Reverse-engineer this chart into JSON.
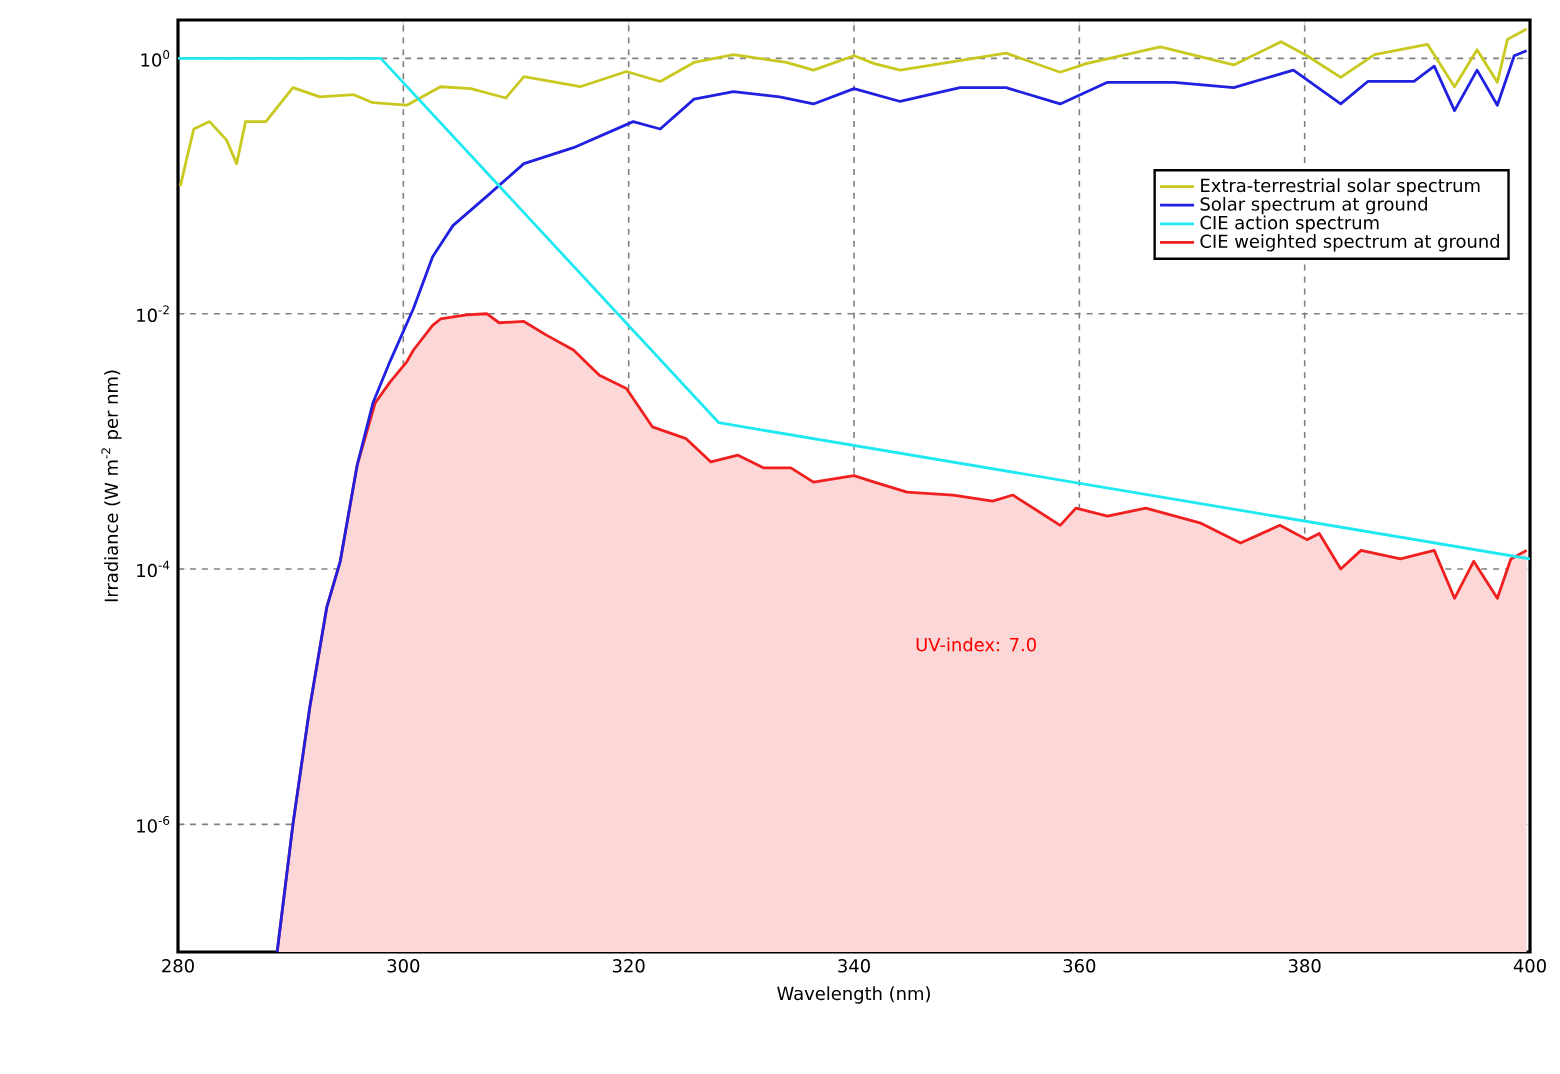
{
  "chart_data": {
    "type": "line",
    "xlabel": "Wavelength (nm)",
    "ylabel": "Irradiance (W m$^{-2}$ per nm)",
    "xlim": [
      280,
      400
    ],
    "xticks": [
      280,
      300,
      320,
      340,
      360,
      380,
      400
    ],
    "ylim": [
      1e-07,
      2
    ],
    "yticks": [
      {
        "value": 1e-06,
        "label": "10$^{-6}$"
      },
      {
        "value": 0.0001,
        "label": "10$^{-4}$"
      },
      {
        "value": 0.01,
        "label": "10$^{-2}$"
      },
      {
        "value": 1,
        "label": "10$^{0}$"
      }
    ],
    "log": "y",
    "grid": true,
    "legend": "top right",
    "line_style": "solid",
    "annotations": [
      "UV-index: 7.0"
    ],
    "series": [
      {
        "name": "Extra-terrestrial solar spectrum",
        "color": "#c8c820",
        "x": [
          280.2,
          281.4,
          282.8,
          284.3,
          285.2,
          286,
          287.8,
          290.2,
          292.6,
          295.6,
          297.3,
          300.3,
          303.3,
          306,
          309.1,
          310.7,
          315.7,
          319.8,
          322.8,
          325.8,
          329.3,
          334,
          336.4,
          340,
          341.8,
          344.1,
          347.7,
          353.5,
          358.3,
          360.6,
          367.2,
          373.7,
          377.9,
          380.2,
          383.2,
          386.2,
          390.9,
          393.3,
          395.3,
          397.1,
          398,
          399.7
        ],
        "values": [
          0.1,
          0.28,
          0.32,
          0.23,
          0.15,
          0.32,
          0.32,
          0.59,
          0.5,
          0.52,
          0.45,
          0.43,
          0.6,
          0.58,
          0.49,
          0.72,
          0.6,
          0.79,
          0.66,
          0.93,
          1.07,
          0.93,
          0.81,
          1.05,
          0.91,
          0.81,
          0.91,
          1.1,
          0.78,
          0.91,
          1.23,
          0.89,
          1.35,
          1.05,
          0.71,
          1.07,
          1.29,
          0.6,
          1.17,
          0.65,
          1.41,
          1.7
        ]
      },
      {
        "name": "Solar spectrum at ground",
        "color": "#2020e0",
        "x": [
          288.8,
          290.2,
          291.7,
          293.2,
          294.4,
          295.9,
          297.3,
          298.8,
          300.9,
          302.6,
          304.4,
          307.4,
          310.7,
          315.1,
          320.4,
          322.8,
          325.8,
          329.3,
          333.4,
          336.4,
          340,
          344.1,
          349.4,
          353.5,
          358.3,
          362.5,
          368.4,
          373.7,
          379,
          383.2,
          385.6,
          389.7,
          391.5,
          393.3,
          395.3,
          397.1,
          398.6,
          399.7
        ],
        "values": [
          1e-07,
          1e-06,
          8.3e-06,
          5e-05,
          0.000115,
          0.00065,
          0.002,
          0.0042,
          0.011,
          0.028,
          0.049,
          0.083,
          0.15,
          0.2,
          0.32,
          0.28,
          0.48,
          0.55,
          0.5,
          0.44,
          0.58,
          0.46,
          0.59,
          0.59,
          0.44,
          0.65,
          0.65,
          0.59,
          0.81,
          0.44,
          0.66,
          0.66,
          0.87,
          0.39,
          0.81,
          0.43,
          1.05,
          1.15
        ]
      },
      {
        "name": "CIE action spectrum",
        "color": "#20e8f0",
        "x": [
          280,
          298,
          328,
          400
        ],
        "values": [
          1,
          1,
          0.0014,
          0.00012
        ]
      },
      {
        "name": "CIE weighted spectrum at ground",
        "color": "#f02020",
        "type": "area",
        "x": [
          288.8,
          290.2,
          291.7,
          293.2,
          294.4,
          295.9,
          297.5,
          298.8,
          300.3,
          300.9,
          302.6,
          303.3,
          305.6,
          307.4,
          308.5,
          310.7,
          312.7,
          315.1,
          317.4,
          319.8,
          322.1,
          325.1,
          327.3,
          329.7,
          332,
          334.4,
          336.4,
          340,
          341.8,
          344.7,
          348.8,
          352.3,
          354.1,
          358.3,
          359.7,
          362.5,
          365.9,
          370.7,
          374.3,
          377.8,
          380.2,
          381.3,
          383.2,
          385,
          388.5,
          391.5,
          393.3,
          395,
          397.1,
          398.3,
          399.7
        ],
        "values": [
          1e-07,
          1e-06,
          8.3e-06,
          5e-05,
          0.000115,
          0.00065,
          0.002,
          0.0029,
          0.0042,
          0.0052,
          0.0081,
          0.0091,
          0.0098,
          0.01,
          0.0085,
          0.0087,
          0.0068,
          0.0052,
          0.0033,
          0.0026,
          0.0013,
          0.00105,
          0.00069,
          0.00078,
          0.00062,
          0.00062,
          0.00048,
          0.00054,
          0.00048,
          0.0004,
          0.00038,
          0.00034,
          0.00038,
          0.00022,
          0.0003,
          0.00026,
          0.0003,
          0.00023,
          0.00016,
          0.00022,
          0.00017,
          0.00019,
          0.0001,
          0.00014,
          0.00012,
          0.00014,
          5.9e-05,
          0.000115,
          5.9e-05,
          0.00012,
          0.00014
        ]
      }
    ]
  }
}
